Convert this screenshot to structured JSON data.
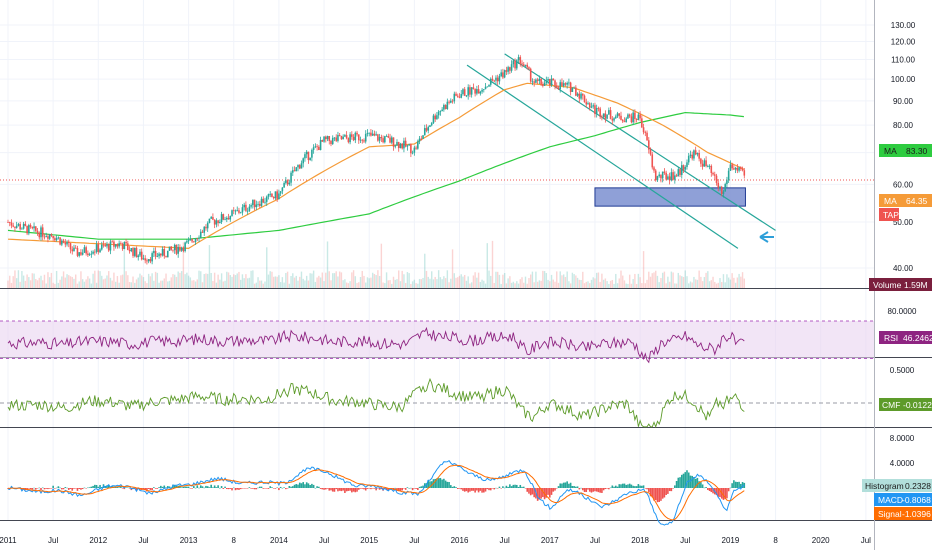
{
  "chart_data": {
    "type": "candlestick",
    "symbol": "TAP",
    "x_axis": {
      "tick_labels": [
        "2011",
        "Jul",
        "2012",
        "Jul",
        "2013",
        "8",
        "2014",
        "Jul",
        "2015",
        "Jul",
        "2016",
        "Jul",
        "2017",
        "Jul",
        "2018",
        "Jul",
        "2019",
        "8",
        "2020",
        "Jul"
      ]
    },
    "price_pane": {
      "y_ticks": [
        "130.00",
        "120.00",
        "110.00",
        "100.00",
        "90.00",
        "80.00",
        "70.00",
        "60.00",
        "50.00",
        "40.00"
      ],
      "ylim": [
        35,
        135
      ],
      "price": [
        {
          "d": "2011-01",
          "v": 50
        },
        {
          "d": "2011-04",
          "v": 48
        },
        {
          "d": "2011-07",
          "v": 47
        },
        {
          "d": "2011-10",
          "v": 43
        },
        {
          "d": "2012-01",
          "v": 44
        },
        {
          "d": "2012-04",
          "v": 45
        },
        {
          "d": "2012-07",
          "v": 42
        },
        {
          "d": "2012-10",
          "v": 43
        },
        {
          "d": "2013-01",
          "v": 45
        },
        {
          "d": "2013-04",
          "v": 50
        },
        {
          "d": "2013-07",
          "v": 52
        },
        {
          "d": "2013-10",
          "v": 55
        },
        {
          "d": "2014-01",
          "v": 57
        },
        {
          "d": "2014-04",
          "v": 67
        },
        {
          "d": "2014-07",
          "v": 74
        },
        {
          "d": "2014-10",
          "v": 75
        },
        {
          "d": "2015-01",
          "v": 76
        },
        {
          "d": "2015-04",
          "v": 74
        },
        {
          "d": "2015-07",
          "v": 71
        },
        {
          "d": "2015-10",
          "v": 85
        },
        {
          "d": "2016-01",
          "v": 93
        },
        {
          "d": "2016-04",
          "v": 96
        },
        {
          "d": "2016-07",
          "v": 103
        },
        {
          "d": "2016-09",
          "v": 110
        },
        {
          "d": "2016-11",
          "v": 98
        },
        {
          "d": "2017-01",
          "v": 98
        },
        {
          "d": "2017-04",
          "v": 96
        },
        {
          "d": "2017-07",
          "v": 86
        },
        {
          "d": "2017-10",
          "v": 83
        },
        {
          "d": "2018-01",
          "v": 83
        },
        {
          "d": "2018-03",
          "v": 62
        },
        {
          "d": "2018-06",
          "v": 63
        },
        {
          "d": "2018-08",
          "v": 70
        },
        {
          "d": "2018-10",
          "v": 65
        },
        {
          "d": "2018-12",
          "v": 57
        },
        {
          "d": "2019-01",
          "v": 66
        },
        {
          "d": "2019-03",
          "v": 62
        }
      ],
      "ma_orange": [
        {
          "d": "2011-01",
          "v": 46
        },
        {
          "d": "2012-01",
          "v": 45
        },
        {
          "d": "2013-01",
          "v": 44
        },
        {
          "d": "2014-01",
          "v": 56
        },
        {
          "d": "2015-01",
          "v": 72
        },
        {
          "d": "2015-07",
          "v": 73
        },
        {
          "d": "2016-01",
          "v": 83
        },
        {
          "d": "2016-07",
          "v": 95
        },
        {
          "d": "2016-10",
          "v": 98
        },
        {
          "d": "2017-04",
          "v": 96
        },
        {
          "d": "2017-10",
          "v": 89
        },
        {
          "d": "2018-04",
          "v": 80
        },
        {
          "d": "2018-10",
          "v": 70
        },
        {
          "d": "2019-03",
          "v": 64.35
        }
      ],
      "ma_green": [
        {
          "d": "2011-01",
          "v": 48
        },
        {
          "d": "2012-01",
          "v": 46
        },
        {
          "d": "2013-01",
          "v": 46
        },
        {
          "d": "2014-01",
          "v": 48
        },
        {
          "d": "2015-01",
          "v": 52
        },
        {
          "d": "2016-01",
          "v": 61
        },
        {
          "d": "2017-01",
          "v": 72
        },
        {
          "d": "2017-07",
          "v": 76
        },
        {
          "d": "2018-01",
          "v": 81
        },
        {
          "d": "2018-07",
          "v": 85
        },
        {
          "d": "2019-01",
          "v": 84
        },
        {
          "d": "2019-03",
          "v": 83.3
        }
      ],
      "horizontal_level": 61.3,
      "zone": {
        "from": "2017-07",
        "to": "2019-03",
        "low": 54,
        "high": 59
      },
      "channel": [
        {
          "from": {
            "d": "2016-07",
            "v": 113
          },
          "to": {
            "d": "2019-07",
            "v": 48
          }
        },
        {
          "from": {
            "d": "2016-02",
            "v": 107
          },
          "to": {
            "d": "2019-02",
            "v": 44
          }
        }
      ],
      "volume_label": "Volume",
      "volume_value": "1.59M",
      "ma_label": "MA",
      "ma_value": "64.35",
      "ma2_label": "MA",
      "ma2_value": "83.30",
      "ticker_badge": "TAP",
      "last_price": "62.06"
    },
    "rsi_pane": {
      "y_tick": "80.0000",
      "label": "RSI",
      "value": "46.2462"
    },
    "cmf_pane": {
      "y_tick": "0.5000",
      "label": "CMF",
      "value": "-0.0122"
    },
    "macd_pane": {
      "y_ticks": [
        "8.0000",
        "4.0000"
      ],
      "histogram_label": "Histogram",
      "histogram_value": "0.2328",
      "macd_label": "MACD",
      "macd_value": "-0.8068",
      "signal_label": "Signal",
      "signal_value": "-1.0396"
    },
    "colors": {
      "up": "#26a69a",
      "down": "#ef5350",
      "ma_orange": "#f59b38",
      "ma_green": "#2ecc40",
      "channel": "#26a69a",
      "zone_fill": "#7b8fd0",
      "zone_stroke": "#1f3a93",
      "rsi": "#8e2481",
      "rsi_band": "#e9d3f0",
      "cmf": "#5d9b2a",
      "macd": "#2196f3",
      "signal": "#ff6d00",
      "hist_up": "#26a69a",
      "hist_down": "#ef5350",
      "volume_badge": "#7a1f3d",
      "arrow": "#2e9fd9"
    }
  }
}
